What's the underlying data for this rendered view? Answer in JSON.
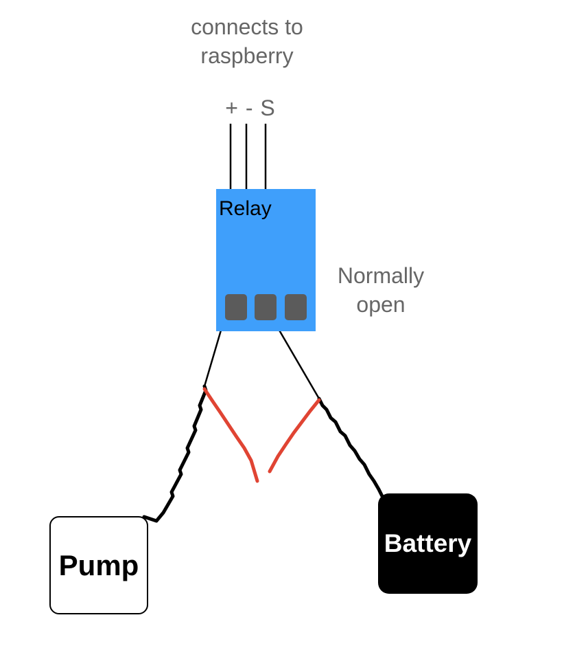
{
  "diagram": {
    "connection_note": {
      "line1": "connects to",
      "line2": "raspberry"
    },
    "pin_labels": "+ - S",
    "relay": {
      "label": "Relay",
      "color": "#3f9ffb",
      "terminal_color": "#5b5b5b"
    },
    "contact_note": {
      "line1": "Normally",
      "line2": "open"
    },
    "pump": {
      "label": "Pump"
    },
    "battery": {
      "label": "Battery"
    },
    "colors": {
      "label_text": "#666666",
      "wire": "#000000",
      "open_circuit_wire": "#e04433"
    }
  }
}
